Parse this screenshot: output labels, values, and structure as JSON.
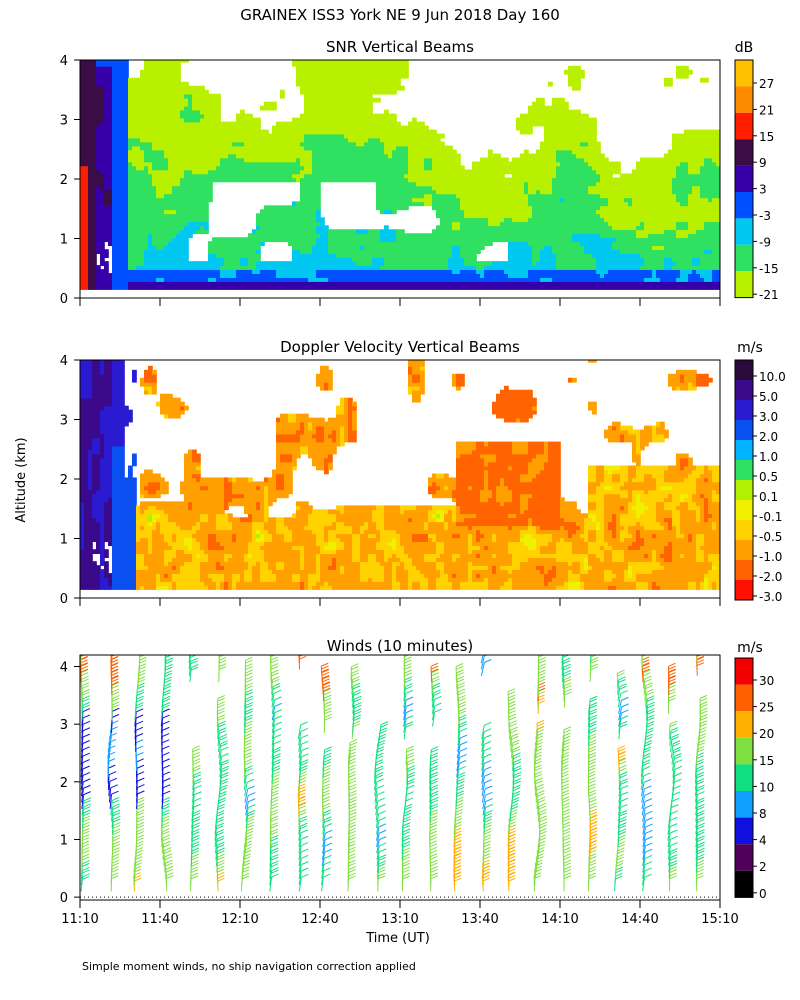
{
  "figure": {
    "title": "GRAINEX ISS3 York NE   9 Jun 2018 Day 160",
    "ylabel": "Altitude (km)",
    "xlabel": "Time (UT)",
    "footnote": "Simple moment winds, no ship navigation correction applied"
  },
  "chart_data": [
    {
      "type": "heatmap",
      "title": "SNR Vertical Beams",
      "x": [
        "11:10",
        "11:40",
        "12:10",
        "12:40",
        "13:10",
        "13:40",
        "14:10",
        "14:40",
        "15:10"
      ],
      "yticks": [
        0,
        1,
        2,
        3,
        4
      ],
      "ylim": [
        0,
        4
      ],
      "colorbar": {
        "unit": "dB",
        "levels": [
          -21,
          -15,
          -9,
          -3,
          3,
          9,
          15,
          21,
          27
        ],
        "colors": [
          "#b8f000",
          "#30e060",
          "#00c8f0",
          "#0050ff",
          "#3800a8",
          "#3c0c46",
          "#ff1e00",
          "#ff8c00",
          "#ffc000"
        ]
      },
      "annotations": [
        "Strong echo (≥9 dB) near 0–3.9 km around 11:10–11:25",
        "Persistent -3 to 9 dB layer below ~0.6 km",
        "Patchy -21 to -9 dB returns between 1 and 4 km"
      ]
    },
    {
      "type": "heatmap",
      "title": "Doppler Velocity Vertical Beams",
      "x": [
        "11:10",
        "11:40",
        "12:10",
        "12:40",
        "13:10",
        "13:40",
        "14:10",
        "14:40",
        "15:10"
      ],
      "yticks": [
        0,
        1,
        2,
        3,
        4
      ],
      "ylim": [
        0,
        4
      ],
      "colorbar": {
        "unit": "m/s",
        "levels": [
          "10.0",
          "5.0",
          "3.0",
          "2.0",
          "1.0",
          "0.5",
          "0.1",
          "-0.1",
          "-0.5",
          "-1.0",
          "-2.0",
          "-3.0"
        ],
        "colors": [
          "#2a0a3a",
          "#3a0a8a",
          "#2a1ad0",
          "#0a50f0",
          "#00b4ff",
          "#30e060",
          "#b0f000",
          "#f0f000",
          "#ffd200",
          "#ffa000",
          "#ff6400",
          "#ff1000"
        ]
      },
      "annotations": [
        "Upward motion 3–10 m/s from 0 to 4 km at 11:10–11:25",
        "Mostly -1.0 to 0.1 m/s below ~1.3 km",
        "Scattered -2.0 to -0.5 m/s near 1.5–2.5 km around 13:30–14:10"
      ]
    },
    {
      "type": "scatter",
      "title": "Winds (10 minutes)",
      "x": [
        "11:10",
        "11:40",
        "12:10",
        "12:40",
        "13:10",
        "13:40",
        "14:10",
        "14:40",
        "15:10"
      ],
      "yticks": [
        0,
        1,
        2,
        3,
        4
      ],
      "ylim": [
        0,
        4
      ],
      "colorbar": {
        "unit": "m/s",
        "levels": [
          0,
          2,
          4,
          8,
          10,
          15,
          20,
          25,
          30
        ],
        "colors": [
          "#000000",
          "#50005a",
          "#1010e0",
          "#10a0ff",
          "#10e080",
          "#80e040",
          "#ffb000",
          "#ff6000",
          "#f00000"
        ]
      },
      "annotations": [
        "Wind barbs every 10 minutes from 0 to ~4.2 km",
        "Speeds mostly 10–20 m/s",
        "Isolated 25–30 m/s barbs near 3–4 km"
      ]
    }
  ]
}
